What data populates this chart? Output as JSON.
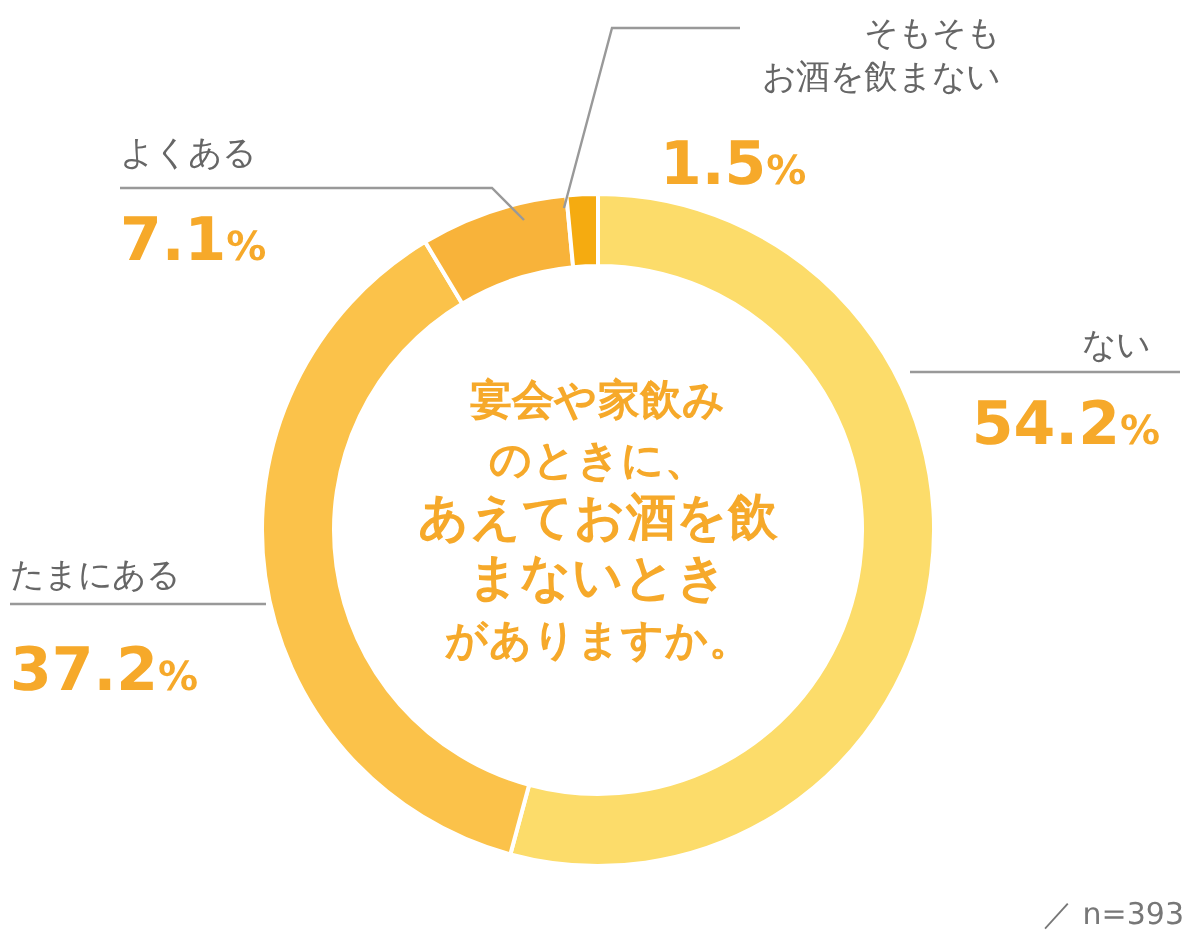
{
  "chart_data": {
    "type": "donut",
    "title": "宴会や家飲みのときに、あえてお酒を飲まないときがありますか。",
    "categories": [
      "ない",
      "たまにある",
      "よくある",
      "そもそもお酒を飲まない"
    ],
    "values": [
      54.2,
      37.2,
      7.1,
      1.5
    ],
    "colors": [
      "#fcdc6a",
      "#fbc24a",
      "#f8b33a",
      "#f5ab10"
    ],
    "value_labels": [
      "54.2%",
      "37.2%",
      "7.1%",
      "1.5%"
    ],
    "annotations": [
      "／ n=393"
    ]
  }
}
